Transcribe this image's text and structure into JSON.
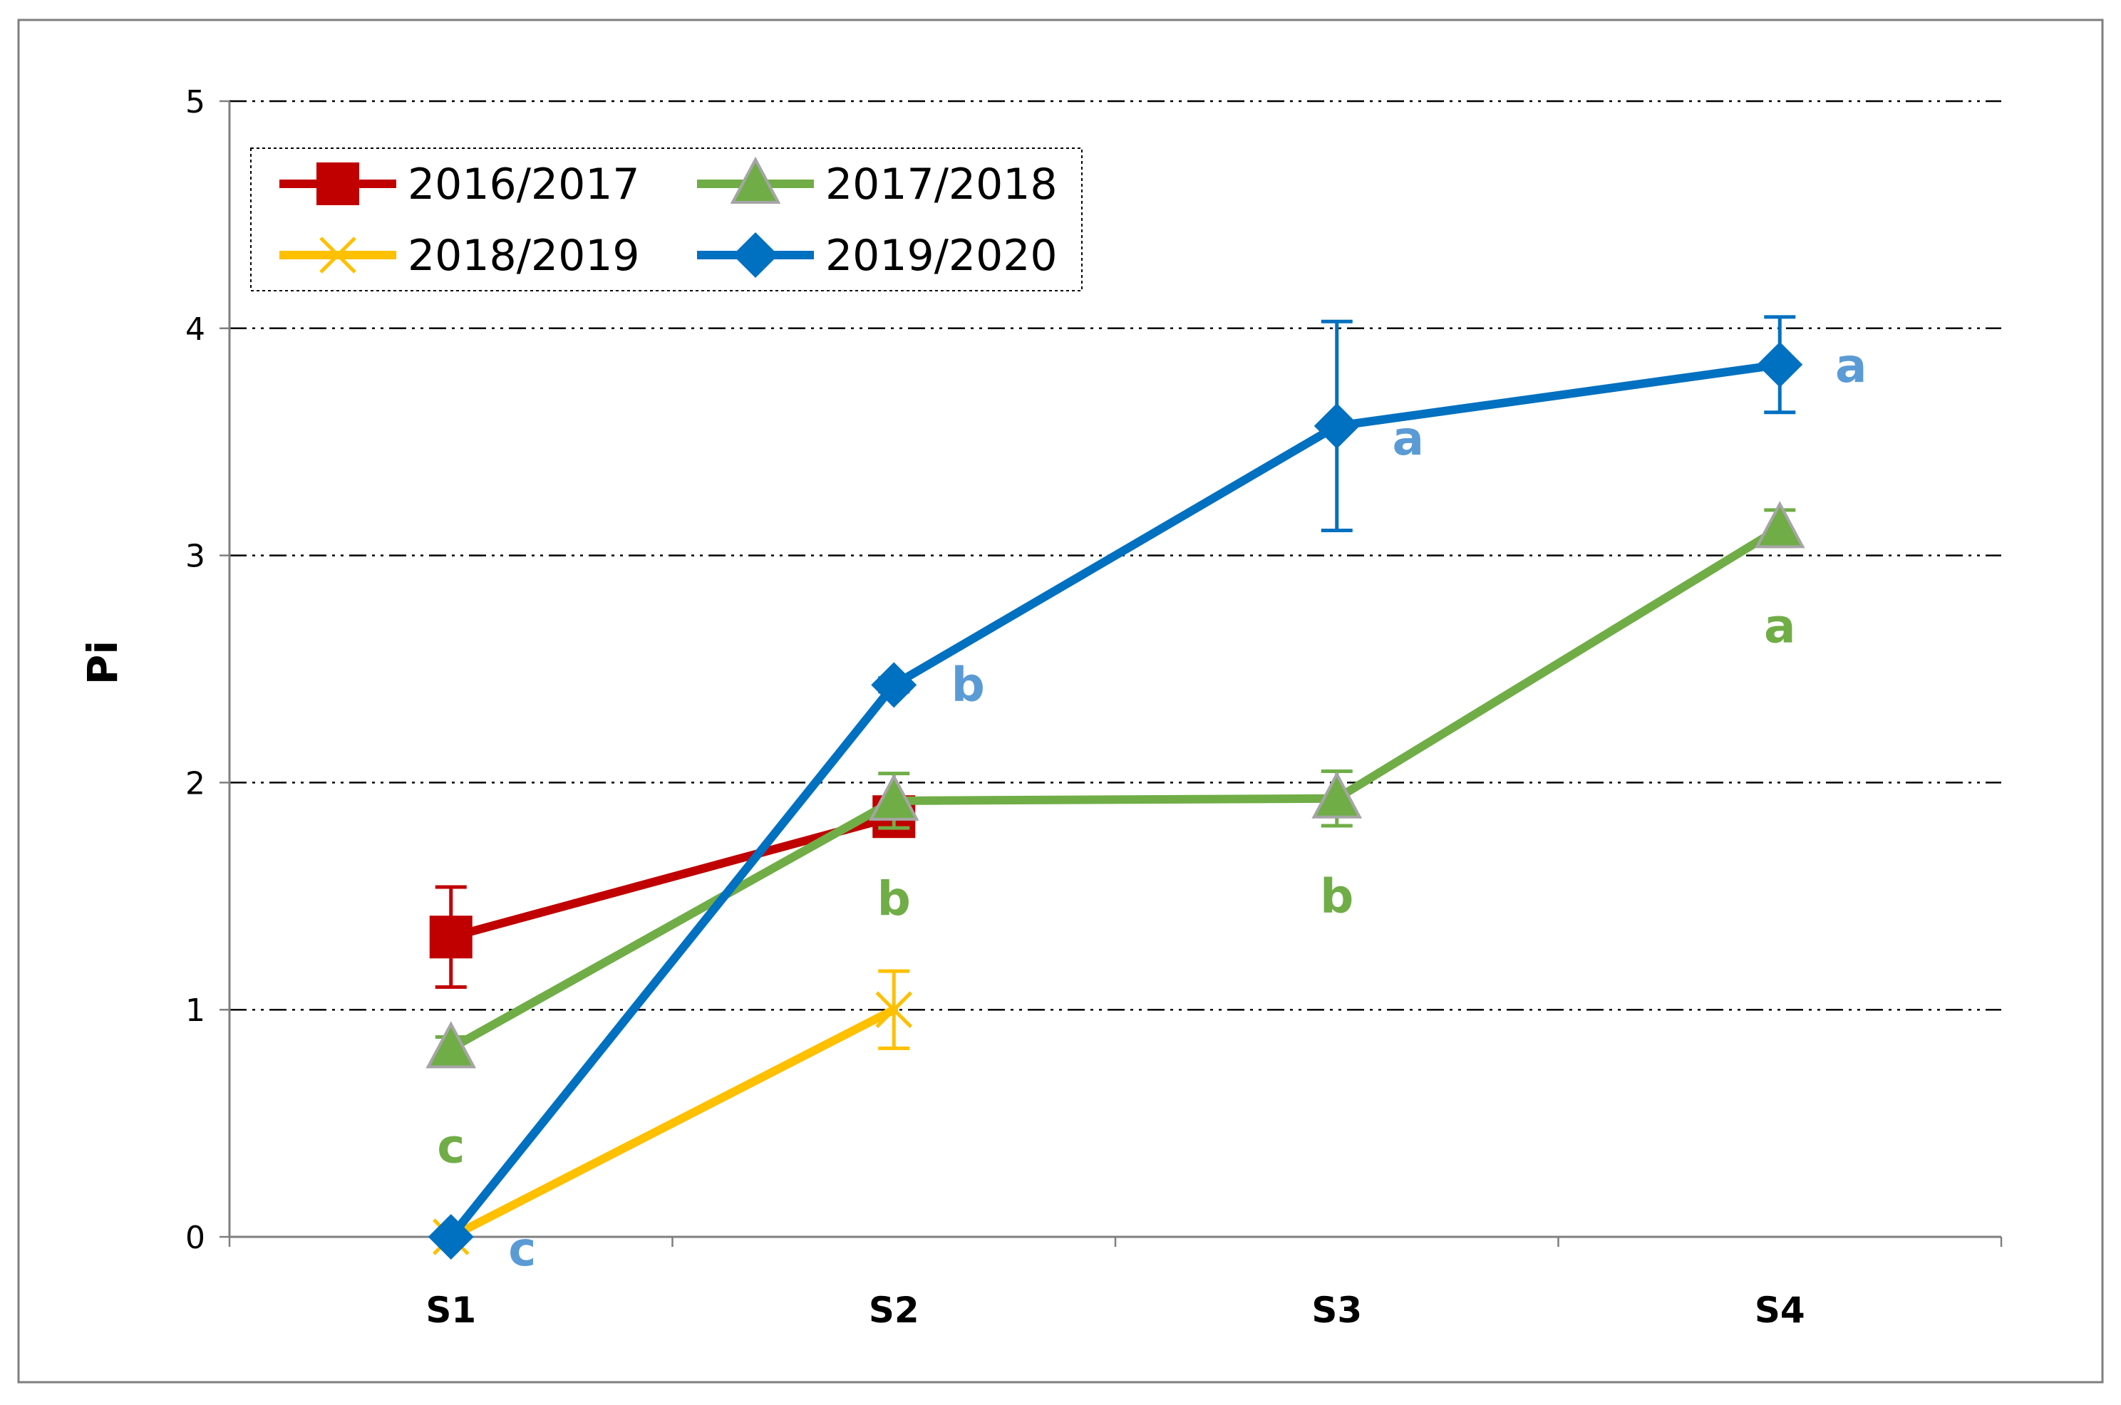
{
  "chart_data": {
    "type": "line",
    "title": "",
    "xlabel": "",
    "ylabel": "Pi",
    "ylim": [
      0,
      5
    ],
    "yticks": [
      0,
      1,
      2,
      3,
      4,
      5
    ],
    "categories": [
      "S1",
      "S2",
      "S3",
      "S4"
    ],
    "grid": true,
    "legend_position": "top-left",
    "series": [
      {
        "name": "2016/2017",
        "color": "#C00000",
        "marker": "square",
        "values": [
          1.32,
          1.85,
          null,
          null
        ],
        "errors": [
          0.22,
          0.04,
          null,
          null
        ],
        "letters": [
          "",
          "",
          "",
          ""
        ]
      },
      {
        "name": "2017/2018",
        "color": "#70AD47",
        "marker": "triangle",
        "values": [
          0.83,
          1.92,
          1.93,
          3.12
        ],
        "errors": [
          0.05,
          0.12,
          0.12,
          0.08
        ],
        "letters": [
          "c",
          "b",
          "b",
          "a"
        ]
      },
      {
        "name": "2018/2019",
        "color": "#FFC000",
        "marker": "x",
        "values": [
          0,
          1.0,
          null,
          null
        ],
        "errors": [
          0,
          0.17,
          null,
          null
        ],
        "letters": [
          "",
          "",
          "",
          ""
        ]
      },
      {
        "name": "2019/2020",
        "color": "#0070C0",
        "marker": "diamond",
        "values": [
          0,
          2.43,
          3.57,
          3.84
        ],
        "errors": [
          0,
          0.03,
          0.46,
          0.21
        ],
        "letters": [
          "c",
          "b",
          "a",
          "a"
        ]
      }
    ]
  }
}
